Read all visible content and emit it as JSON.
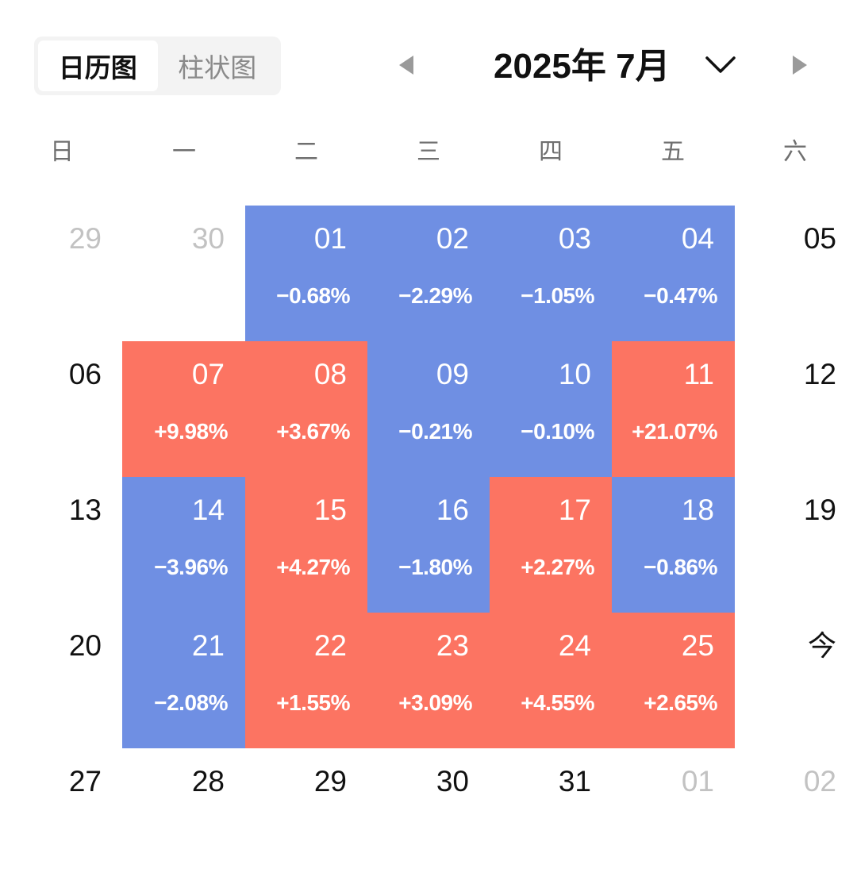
{
  "tabs": [
    {
      "label": "日历图",
      "active": true
    },
    {
      "label": "柱状图",
      "active": false
    }
  ],
  "header": {
    "month_title": "2025年 7月"
  },
  "icons": {
    "prev": "triangle-left-icon",
    "next": "triangle-right-icon",
    "dropdown": "chevron-down-icon"
  },
  "colors": {
    "down": "#6f8fe3",
    "up": "#fc7462",
    "muted_text": "#c2c2c2",
    "weekday_text": "#6f6f6f",
    "nav_icon": "#9a9a9a"
  },
  "weekdays": [
    "日",
    "一",
    "二",
    "三",
    "四",
    "五",
    "六"
  ],
  "weeks": [
    [
      {
        "day": "29",
        "muted": true
      },
      {
        "day": "30",
        "muted": true
      },
      {
        "day": "01",
        "change": "−0.68%",
        "trend": "down"
      },
      {
        "day": "02",
        "change": "−2.29%",
        "trend": "down"
      },
      {
        "day": "03",
        "change": "−1.05%",
        "trend": "down"
      },
      {
        "day": "04",
        "change": "−0.47%",
        "trend": "down"
      },
      {
        "day": "05"
      }
    ],
    [
      {
        "day": "06"
      },
      {
        "day": "07",
        "change": "+9.98%",
        "trend": "up"
      },
      {
        "day": "08",
        "change": "+3.67%",
        "trend": "up"
      },
      {
        "day": "09",
        "change": "−0.21%",
        "trend": "down"
      },
      {
        "day": "10",
        "change": "−0.10%",
        "trend": "down"
      },
      {
        "day": "11",
        "change": "+21.07%",
        "trend": "up"
      },
      {
        "day": "12"
      }
    ],
    [
      {
        "day": "13"
      },
      {
        "day": "14",
        "change": "−3.96%",
        "trend": "down"
      },
      {
        "day": "15",
        "change": "+4.27%",
        "trend": "up"
      },
      {
        "day": "16",
        "change": "−1.80%",
        "trend": "down"
      },
      {
        "day": "17",
        "change": "+2.27%",
        "trend": "up"
      },
      {
        "day": "18",
        "change": "−0.86%",
        "trend": "down"
      },
      {
        "day": "19"
      }
    ],
    [
      {
        "day": "20"
      },
      {
        "day": "21",
        "change": "−2.08%",
        "trend": "down"
      },
      {
        "day": "22",
        "change": "+1.55%",
        "trend": "up"
      },
      {
        "day": "23",
        "change": "+3.09%",
        "trend": "up"
      },
      {
        "day": "24",
        "change": "+4.55%",
        "trend": "up"
      },
      {
        "day": "25",
        "change": "+2.65%",
        "trend": "up"
      },
      {
        "day": "今",
        "today": true
      }
    ],
    [
      {
        "day": "27"
      },
      {
        "day": "28"
      },
      {
        "day": "29"
      },
      {
        "day": "30"
      },
      {
        "day": "31"
      },
      {
        "day": "01",
        "muted": true
      },
      {
        "day": "02",
        "muted": true
      }
    ]
  ]
}
